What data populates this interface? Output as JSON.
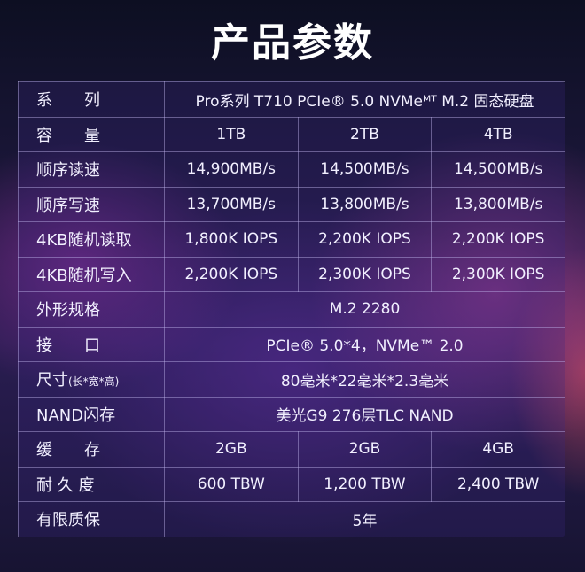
{
  "title": "产品参数",
  "rows": [
    {
      "label": "系　　列",
      "span": "Pro系列 T710 PCIe® 5.0 NVMeᴹᵀ M.2 固态硬盘"
    },
    {
      "label": "容　　量",
      "values": [
        "1TB",
        "2TB",
        "4TB"
      ]
    },
    {
      "label": "顺序读速",
      "values": [
        "14,900MB/s",
        "14,500MB/s",
        "14,500MB/s"
      ]
    },
    {
      "label": "顺序写速",
      "values": [
        "13,700MB/s",
        "13,800MB/s",
        "13,800MB/s"
      ]
    },
    {
      "label": "4KB随机读取",
      "values": [
        "1,800K IOPS",
        "2,200K IOPS",
        "2,200K IOPS"
      ]
    },
    {
      "label": "4KB随机写入",
      "values": [
        "2,200K IOPS",
        "2,300K IOPS",
        "2,300K IOPS"
      ]
    },
    {
      "label": "外形规格",
      "span": "M.2 2280"
    },
    {
      "label": "接　　口",
      "span": "PCIe® 5.0*4，NVMe™ 2.0"
    },
    {
      "label": "尺寸",
      "label_note": "(长*宽*高)",
      "span": "80毫米*22毫米*2.3毫米"
    },
    {
      "label": "NAND闪存",
      "span": "美光G9 276层TLC NAND"
    },
    {
      "label": "缓　　存",
      "values": [
        "2GB",
        "2GB",
        "4GB"
      ]
    },
    {
      "label": "耐 久 度",
      "values": [
        "600 TBW",
        "1,200 TBW",
        "2,400 TBW"
      ]
    },
    {
      "label": "有限质保",
      "span": "5年"
    }
  ]
}
